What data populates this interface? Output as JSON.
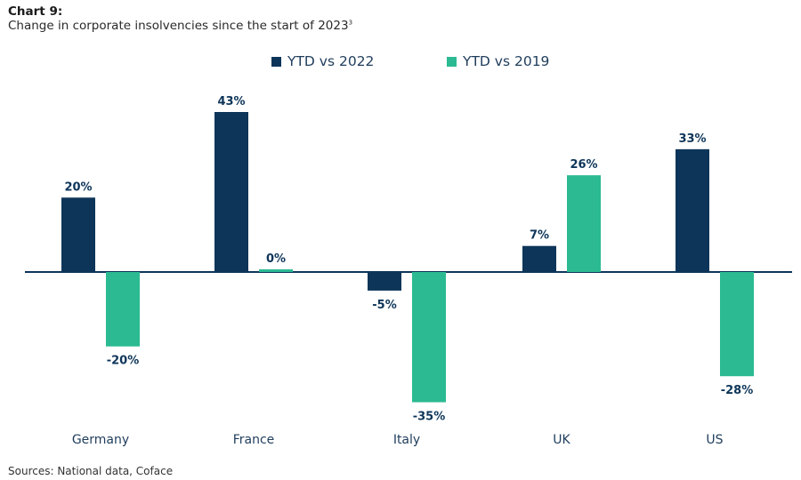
{
  "header": {
    "title": "Chart 9:",
    "subtitle": "Change in corporate insolvencies since the start of 2023",
    "subtitle_footnote": "3"
  },
  "footer": {
    "source": "Sources: National data, Coface"
  },
  "colors": {
    "ytd_vs_2022": "#0d3559",
    "ytd_vs_2019": "#2bba92"
  },
  "chart_data": {
    "type": "bar",
    "title": "Change in corporate insolvencies since the start of 2023",
    "xlabel": "",
    "ylabel": "",
    "categories": [
      "Germany",
      "France",
      "Italy",
      "UK",
      "US"
    ],
    "series": [
      {
        "name": "YTD vs 2022",
        "color": "#0d3559",
        "values": [
          20,
          43,
          -5,
          7,
          33
        ],
        "labels": [
          "20%",
          "43%",
          "-5%",
          "7%",
          "33%"
        ]
      },
      {
        "name": "YTD vs 2019",
        "color": "#2bba92",
        "values": [
          -20,
          0,
          -35,
          26,
          -28
        ],
        "labels": [
          "-20%",
          "0%",
          "-35%",
          "26%",
          "-28%"
        ]
      }
    ],
    "ylim": [
      -35,
      43
    ],
    "value_unit": "%",
    "grid": false,
    "legend_position": "top-center",
    "y_axis_visible": false
  }
}
